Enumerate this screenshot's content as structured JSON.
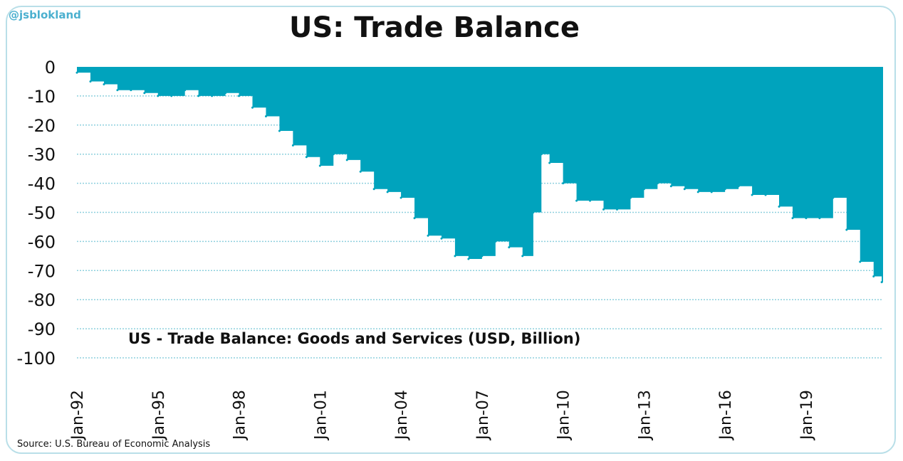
{
  "logo": "@jsblokland",
  "source": "Source: U.S. Bureau of Economic Analysis",
  "chart_data": {
    "type": "area",
    "title": "US: Trade Balance",
    "series_label": "US - Trade Balance: Goods and Services (USD, Billion)",
    "color": "#00a3bd",
    "ylim": [
      -100,
      0
    ],
    "yticks": [
      0,
      -10,
      -20,
      -30,
      -40,
      -50,
      -60,
      -70,
      -80,
      -90,
      -100
    ],
    "xlim": [
      1992,
      2021.85
    ],
    "xticks": [
      {
        "v": 1992,
        "label": "Jan-92"
      },
      {
        "v": 1995,
        "label": "Jan-95"
      },
      {
        "v": 1998,
        "label": "Jan-98"
      },
      {
        "v": 2001,
        "label": "Jan-01"
      },
      {
        "v": 2004,
        "label": "Jan-04"
      },
      {
        "v": 2007,
        "label": "Jan-07"
      },
      {
        "v": 2010,
        "label": "Jan-10"
      },
      {
        "v": 2013,
        "label": "Jan-13"
      },
      {
        "v": 2016,
        "label": "Jan-16"
      },
      {
        "v": 2019,
        "label": "Jan-19"
      }
    ],
    "x": [
      1992,
      1992.5,
      1993,
      1993.5,
      1994,
      1994.5,
      1995,
      1995.5,
      1996,
      1996.5,
      1997,
      1997.5,
      1998,
      1998.5,
      1999,
      1999.5,
      2000,
      2000.5,
      2001,
      2001.5,
      2002,
      2002.5,
      2003,
      2003.5,
      2004,
      2004.5,
      2005,
      2005.5,
      2006,
      2006.5,
      2007,
      2007.5,
      2008,
      2008.5,
      2008.9,
      2009.2,
      2009.5,
      2010,
      2010.5,
      2011,
      2011.5,
      2012,
      2012.5,
      2013,
      2013.5,
      2014,
      2014.5,
      2015,
      2015.5,
      2016,
      2016.5,
      2017,
      2017.5,
      2018,
      2018.5,
      2019,
      2019.5,
      2020,
      2020.5,
      2021,
      2021.5,
      2021.8
    ],
    "values": [
      -2,
      -5,
      -6,
      -8,
      -8,
      -9,
      -10,
      -10,
      -8,
      -10,
      -10,
      -9,
      -10,
      -14,
      -17,
      -22,
      -27,
      -31,
      -34,
      -30,
      -32,
      -36,
      -42,
      -43,
      -45,
      -52,
      -58,
      -59,
      -65,
      -66,
      -65,
      -60,
      -62,
      -65,
      -50,
      -30,
      -33,
      -40,
      -46,
      -46,
      -49,
      -49,
      -45,
      -42,
      -40,
      -41,
      -42,
      -43,
      -43,
      -42,
      -41,
      -44,
      -44,
      -48,
      -52,
      -52,
      -52,
      -45,
      -56,
      -67,
      -72,
      -74
    ]
  }
}
